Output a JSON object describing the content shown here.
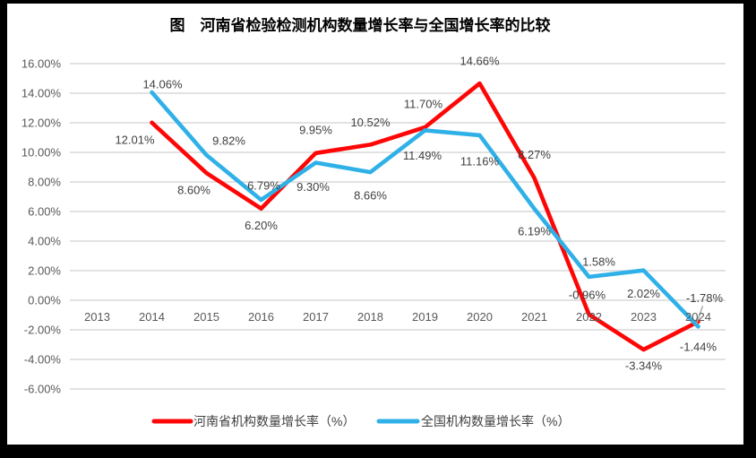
{
  "title": "图　河南省检验检测机构数量增长率与全国增长率的比较",
  "frame": {
    "border_color": "#000000",
    "background": "#ffffff"
  },
  "legend": {
    "position": "bottom",
    "items": [
      {
        "label": "河南省机构数量增长率（%）",
        "color": "#fe0606"
      },
      {
        "label": "全国机构数量增长率（%）",
        "color": "#2fb1e8"
      }
    ]
  },
  "chart_data": {
    "type": "line",
    "title": "图　河南省检验检测机构数量增长率与全国增长率的比较",
    "xlabel": "",
    "ylabel": "",
    "categories": [
      "2013",
      "2014",
      "2015",
      "2016",
      "2017",
      "2018",
      "2019",
      "2020",
      "2021",
      "2022",
      "2023",
      "2024"
    ],
    "series": [
      {
        "name": "河南省机构数量增长率（%）",
        "color": "#fe0606",
        "values": [
          null,
          12.01,
          8.6,
          6.2,
          9.95,
          10.52,
          11.7,
          14.66,
          8.27,
          -0.96,
          -3.34,
          -1.44
        ],
        "data_labels": [
          null,
          "12.01%",
          "8.60%",
          "6.20%",
          "9.95%",
          "10.52%",
          "11.70%",
          "14.66%",
          "8.27%",
          "-0.96%",
          "-3.34%",
          "-1.44%"
        ],
        "label_offsets": [
          null,
          [
            -19,
            19
          ],
          [
            -14,
            19
          ],
          [
            0,
            19
          ],
          [
            0,
            -26
          ],
          [
            0,
            -25
          ],
          [
            -2,
            -26
          ],
          [
            0,
            -25
          ],
          [
            0,
            -26
          ],
          [
            -2,
            -22
          ],
          [
            0,
            18
          ],
          [
            0,
            28
          ]
        ],
        "leader_line_index": null
      },
      {
        "name": "全国机构数量增长率（%）",
        "color": "#2fb1e8",
        "values": [
          null,
          14.06,
          9.82,
          6.79,
          9.3,
          8.66,
          11.49,
          11.16,
          6.19,
          1.58,
          2.02,
          -1.78
        ],
        "data_labels": [
          null,
          "14.06%",
          "9.82%",
          "6.79%",
          "9.30%",
          "8.66%",
          "11.49%",
          "11.16%",
          "6.19%",
          "1.58%",
          "2.02%",
          "-1.78%"
        ],
        "label_offsets": [
          null,
          [
            12,
            -9
          ],
          [
            25,
            -16
          ],
          [
            3,
            -16
          ],
          [
            -3,
            27
          ],
          [
            0,
            26
          ],
          [
            -3,
            28
          ],
          [
            0,
            29
          ],
          [
            0,
            25
          ],
          [
            11,
            -17
          ],
          [
            0,
            26
          ],
          [
            7,
            -32
          ]
        ],
        "leader_line_index": 11
      }
    ],
    "ylim": [
      -6,
      16
    ],
    "ytick_step": 2,
    "ytick_labels": [
      "16.00%",
      "14.00%",
      "12.00%",
      "10.00%",
      "8.00%",
      "6.00%",
      "4.00%",
      "2.00%",
      "0.00%",
      "-2.00%",
      "-4.00%",
      "-6.00%"
    ],
    "grid": true,
    "legend_position": "bottom",
    "colors": {
      "gridline": "#d9d9d9",
      "axis_text": "#595959",
      "data_label_text": "#3f3f3f",
      "legend_text": "#404040",
      "leader_line": "#a6a6a6",
      "title_text": "#000000"
    }
  }
}
